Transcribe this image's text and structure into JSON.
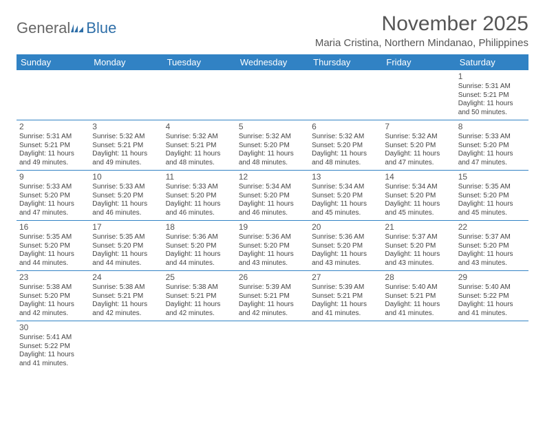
{
  "logo": {
    "text1": "General",
    "text2": "Blue"
  },
  "header": {
    "month_title": "November 2025",
    "location": "Maria Cristina, Northern Mindanao, Philippines"
  },
  "colors": {
    "header_bar": "#3182c4",
    "text": "#555555",
    "cell_border": "#3182c4"
  },
  "day_names": [
    "Sunday",
    "Monday",
    "Tuesday",
    "Wednesday",
    "Thursday",
    "Friday",
    "Saturday"
  ],
  "weeks": [
    [
      null,
      null,
      null,
      null,
      null,
      null,
      {
        "n": "1",
        "sr": "Sunrise: 5:31 AM",
        "ss": "Sunset: 5:21 PM",
        "dl": "Daylight: 11 hours and 50 minutes."
      }
    ],
    [
      {
        "n": "2",
        "sr": "Sunrise: 5:31 AM",
        "ss": "Sunset: 5:21 PM",
        "dl": "Daylight: 11 hours and 49 minutes."
      },
      {
        "n": "3",
        "sr": "Sunrise: 5:32 AM",
        "ss": "Sunset: 5:21 PM",
        "dl": "Daylight: 11 hours and 49 minutes."
      },
      {
        "n": "4",
        "sr": "Sunrise: 5:32 AM",
        "ss": "Sunset: 5:21 PM",
        "dl": "Daylight: 11 hours and 48 minutes."
      },
      {
        "n": "5",
        "sr": "Sunrise: 5:32 AM",
        "ss": "Sunset: 5:20 PM",
        "dl": "Daylight: 11 hours and 48 minutes."
      },
      {
        "n": "6",
        "sr": "Sunrise: 5:32 AM",
        "ss": "Sunset: 5:20 PM",
        "dl": "Daylight: 11 hours and 48 minutes."
      },
      {
        "n": "7",
        "sr": "Sunrise: 5:32 AM",
        "ss": "Sunset: 5:20 PM",
        "dl": "Daylight: 11 hours and 47 minutes."
      },
      {
        "n": "8",
        "sr": "Sunrise: 5:33 AM",
        "ss": "Sunset: 5:20 PM",
        "dl": "Daylight: 11 hours and 47 minutes."
      }
    ],
    [
      {
        "n": "9",
        "sr": "Sunrise: 5:33 AM",
        "ss": "Sunset: 5:20 PM",
        "dl": "Daylight: 11 hours and 47 minutes."
      },
      {
        "n": "10",
        "sr": "Sunrise: 5:33 AM",
        "ss": "Sunset: 5:20 PM",
        "dl": "Daylight: 11 hours and 46 minutes."
      },
      {
        "n": "11",
        "sr": "Sunrise: 5:33 AM",
        "ss": "Sunset: 5:20 PM",
        "dl": "Daylight: 11 hours and 46 minutes."
      },
      {
        "n": "12",
        "sr": "Sunrise: 5:34 AM",
        "ss": "Sunset: 5:20 PM",
        "dl": "Daylight: 11 hours and 46 minutes."
      },
      {
        "n": "13",
        "sr": "Sunrise: 5:34 AM",
        "ss": "Sunset: 5:20 PM",
        "dl": "Daylight: 11 hours and 45 minutes."
      },
      {
        "n": "14",
        "sr": "Sunrise: 5:34 AM",
        "ss": "Sunset: 5:20 PM",
        "dl": "Daylight: 11 hours and 45 minutes."
      },
      {
        "n": "15",
        "sr": "Sunrise: 5:35 AM",
        "ss": "Sunset: 5:20 PM",
        "dl": "Daylight: 11 hours and 45 minutes."
      }
    ],
    [
      {
        "n": "16",
        "sr": "Sunrise: 5:35 AM",
        "ss": "Sunset: 5:20 PM",
        "dl": "Daylight: 11 hours and 44 minutes."
      },
      {
        "n": "17",
        "sr": "Sunrise: 5:35 AM",
        "ss": "Sunset: 5:20 PM",
        "dl": "Daylight: 11 hours and 44 minutes."
      },
      {
        "n": "18",
        "sr": "Sunrise: 5:36 AM",
        "ss": "Sunset: 5:20 PM",
        "dl": "Daylight: 11 hours and 44 minutes."
      },
      {
        "n": "19",
        "sr": "Sunrise: 5:36 AM",
        "ss": "Sunset: 5:20 PM",
        "dl": "Daylight: 11 hours and 43 minutes."
      },
      {
        "n": "20",
        "sr": "Sunrise: 5:36 AM",
        "ss": "Sunset: 5:20 PM",
        "dl": "Daylight: 11 hours and 43 minutes."
      },
      {
        "n": "21",
        "sr": "Sunrise: 5:37 AM",
        "ss": "Sunset: 5:20 PM",
        "dl": "Daylight: 11 hours and 43 minutes."
      },
      {
        "n": "22",
        "sr": "Sunrise: 5:37 AM",
        "ss": "Sunset: 5:20 PM",
        "dl": "Daylight: 11 hours and 43 minutes."
      }
    ],
    [
      {
        "n": "23",
        "sr": "Sunrise: 5:38 AM",
        "ss": "Sunset: 5:20 PM",
        "dl": "Daylight: 11 hours and 42 minutes."
      },
      {
        "n": "24",
        "sr": "Sunrise: 5:38 AM",
        "ss": "Sunset: 5:21 PM",
        "dl": "Daylight: 11 hours and 42 minutes."
      },
      {
        "n": "25",
        "sr": "Sunrise: 5:38 AM",
        "ss": "Sunset: 5:21 PM",
        "dl": "Daylight: 11 hours and 42 minutes."
      },
      {
        "n": "26",
        "sr": "Sunrise: 5:39 AM",
        "ss": "Sunset: 5:21 PM",
        "dl": "Daylight: 11 hours and 42 minutes."
      },
      {
        "n": "27",
        "sr": "Sunrise: 5:39 AM",
        "ss": "Sunset: 5:21 PM",
        "dl": "Daylight: 11 hours and 41 minutes."
      },
      {
        "n": "28",
        "sr": "Sunrise: 5:40 AM",
        "ss": "Sunset: 5:21 PM",
        "dl": "Daylight: 11 hours and 41 minutes."
      },
      {
        "n": "29",
        "sr": "Sunrise: 5:40 AM",
        "ss": "Sunset: 5:22 PM",
        "dl": "Daylight: 11 hours and 41 minutes."
      }
    ],
    [
      {
        "n": "30",
        "sr": "Sunrise: 5:41 AM",
        "ss": "Sunset: 5:22 PM",
        "dl": "Daylight: 11 hours and 41 minutes."
      },
      null,
      null,
      null,
      null,
      null,
      null
    ]
  ]
}
